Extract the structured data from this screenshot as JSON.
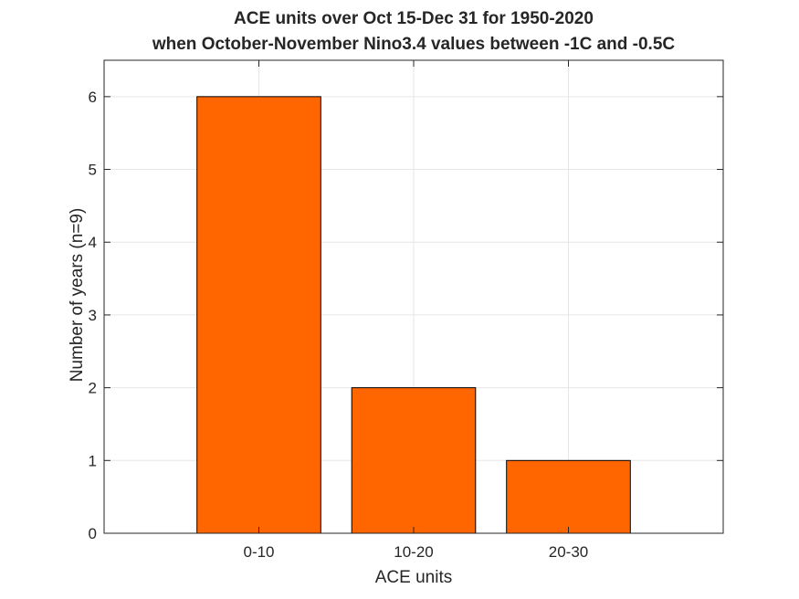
{
  "chart_data": {
    "type": "bar",
    "title": [
      "ACE units over Oct 15-Dec 31 for 1950-2020",
      "when October-November Nino3.4 values between -1C and -0.5C"
    ],
    "xlabel": "ACE units",
    "ylabel": "Number of years (n=9)",
    "categories": [
      "0-10",
      "10-20",
      "20-30"
    ],
    "values": [
      6,
      2,
      1
    ],
    "ylim": [
      0,
      6.5
    ],
    "yticks": [
      0,
      1,
      2,
      3,
      4,
      5,
      6
    ],
    "grid": true,
    "bar_color": "#FF6600",
    "bar_edge_color": "#000000",
    "axis_color": "#262626",
    "grid_color": "#E6E6E6"
  }
}
